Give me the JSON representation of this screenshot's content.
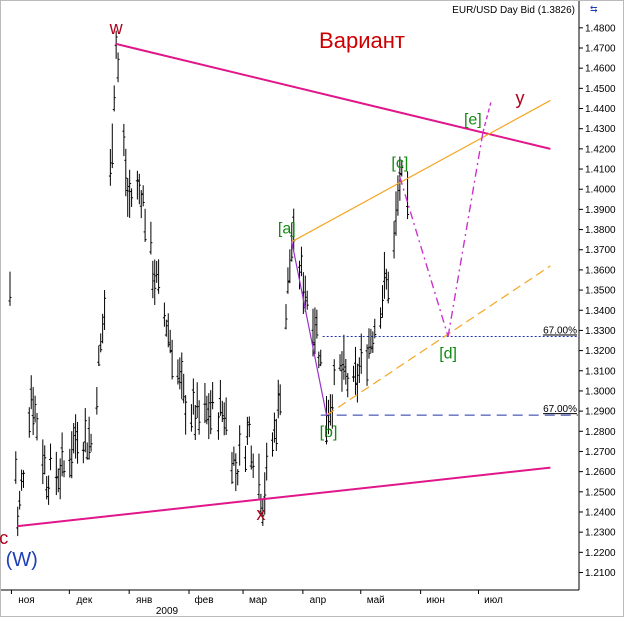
{
  "chart_data": {
    "type": "ohlc",
    "title": "Вариант",
    "header": "EUR/USD Day Bid (1.3826)",
    "ylim": [
      1.2,
      1.49
    ],
    "y_ticks": [
      "1.4800",
      "1.4700",
      "1.4600",
      "1.4500",
      "1.4400",
      "1.4300",
      "1.4200",
      "1.4100",
      "1.4000",
      "1.3900",
      "1.3800",
      "1.3700",
      "1.3600",
      "1.3500",
      "1.3400",
      "1.3300",
      "1.3200",
      "1.3100",
      "1.3000",
      "1.2900",
      "1.2800",
      "1.2700",
      "1.2600",
      "1.2500",
      "1.2400",
      "1.2300",
      "1.2200",
      "1.2100"
    ],
    "x_ticks": [
      "ноя",
      "дек",
      "янв",
      "фев",
      "мар",
      "апр",
      "май",
      "июн",
      "июл"
    ],
    "x_year_label": "2009",
    "x_range": [
      "2008-10-24",
      "2009-07-31"
    ],
    "wave_labels": [
      {
        "text": "w",
        "color": "#b0001b"
      },
      {
        "text": "x",
        "color": "#b0001b"
      },
      {
        "text": "y",
        "color": "#b0001b"
      },
      {
        "text": "c",
        "color": "#b0001b"
      },
      {
        "text": "(W)",
        "color": "#1f3fb6"
      },
      {
        "text": "[a]",
        "color": "#118a11"
      },
      {
        "text": "[b]",
        "color": "#118a11"
      },
      {
        "text": "[c]",
        "color": "#118a11"
      },
      {
        "text": "[d]",
        "color": "#118a11"
      },
      {
        "text": "[e]",
        "color": "#118a11"
      }
    ],
    "fib_levels": [
      {
        "label": "67.00%",
        "value": 1.327
      },
      {
        "label": "67.00%",
        "value": 1.288
      }
    ],
    "colors": {
      "triangle": "#e0168a",
      "channel": "#f5a623",
      "projection": "#cc33cc",
      "fib": "#2233aa",
      "bars": "#000000"
    },
    "anchors": {
      "c_low": {
        "date": "2008-10-28",
        "value": 1.233
      },
      "w_high": {
        "date": "2008-12-18",
        "value": 1.472
      },
      "x_low": {
        "date": "2009-03-04",
        "value": 1.246
      },
      "a_high": {
        "date": "2009-03-19",
        "value": 1.374
      },
      "b_low": {
        "date": "2009-04-06",
        "value": 1.288
      },
      "c_high": {
        "date": "2009-05-14",
        "value": 1.406
      },
      "d_proj": {
        "date": "2009-06-08",
        "value": 1.327
      },
      "e_proj": {
        "date": "2009-06-26",
        "value": 1.428
      },
      "tri_right_top": {
        "date": "2009-07-31",
        "value": 1.42
      },
      "tri_right_bottom": {
        "date": "2009-07-31",
        "value": 1.262
      },
      "channel_right_top": {
        "date": "2009-07-31",
        "value": 1.444
      },
      "channel_right_bottom": {
        "date": "2009-07-31",
        "value": 1.362
      }
    },
    "price_path": [
      [
        "2008-10-24",
        1.35
      ],
      [
        "2008-10-28",
        1.233
      ],
      [
        "2008-11-04",
        1.3
      ],
      [
        "2008-11-12",
        1.258
      ],
      [
        "2008-11-21",
        1.26
      ],
      [
        "2008-11-28",
        1.28
      ],
      [
        "2008-12-05",
        1.274
      ],
      [
        "2008-12-12",
        1.34
      ],
      [
        "2008-12-18",
        1.472
      ],
      [
        "2008-12-24",
        1.395
      ],
      [
        "2008-12-31",
        1.4
      ],
      [
        "2009-01-06",
        1.36
      ],
      [
        "2009-01-14",
        1.33
      ],
      [
        "2009-01-22",
        1.295
      ],
      [
        "2009-01-30",
        1.285
      ],
      [
        "2009-02-06",
        1.29
      ],
      [
        "2009-02-12",
        1.29
      ],
      [
        "2009-02-18",
        1.26
      ],
      [
        "2009-02-25",
        1.28
      ],
      [
        "2009-03-04",
        1.246
      ],
      [
        "2009-03-12",
        1.29
      ],
      [
        "2009-03-19",
        1.374
      ],
      [
        "2009-03-26",
        1.35
      ],
      [
        "2009-04-01",
        1.33
      ],
      [
        "2009-04-06",
        1.288
      ],
      [
        "2009-04-13",
        1.31
      ],
      [
        "2009-04-20",
        1.3
      ],
      [
        "2009-04-27",
        1.32
      ],
      [
        "2009-05-06",
        1.35
      ],
      [
        "2009-05-10",
        1.36
      ],
      [
        "2009-05-14",
        1.406
      ],
      [
        "2009-05-19",
        1.3826
      ]
    ]
  }
}
